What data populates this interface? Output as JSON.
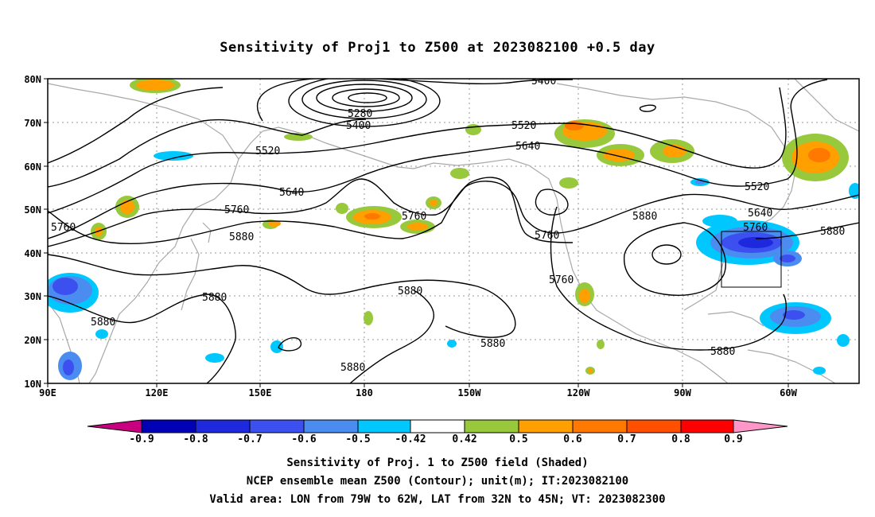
{
  "title": "Sensitivity of Proj1 to Z500 at 2023082100 +0.5 day",
  "map": {
    "lon_ticks": [
      "90E",
      "120E",
      "150E",
      "180",
      "150W",
      "120W",
      "90W",
      "60W"
    ],
    "lat_ticks": [
      "80N",
      "70N",
      "60N",
      "50N",
      "40N",
      "30N",
      "20N",
      "10N"
    ],
    "contour_labels": [
      "5400",
      "5280",
      "5400",
      "5520",
      "5520",
      "5640",
      "5640",
      "5760",
      "5760",
      "5760",
      "5880",
      "5880",
      "5880",
      "5880",
      "5880",
      "5880",
      "5520",
      "5640",
      "5760",
      "5880",
      "5760",
      "5760",
      "5880",
      "5880"
    ],
    "valid_box": {
      "lon_range": [
        "79W",
        "62W"
      ],
      "lat_range": [
        "32N",
        "45N"
      ]
    },
    "shading_colors": {
      "neg_0.9": "#c80080",
      "neg_0.8": "#0000b4",
      "neg_0.7": "#1e28dc",
      "neg_0.6": "#3c50f0",
      "neg_0.5": "#4b8cf0",
      "neg_0.42": "#00c8ff",
      "pos_0.42": "#98c83c",
      "pos_0.5": "#ffa000",
      "pos_0.6": "#ff7800",
      "pos_0.7": "#ff5000",
      "pos_0.8": "#ff0000",
      "pos_0.9": "#ff96c8"
    }
  },
  "colorbar": {
    "labels": [
      "-0.9",
      "-0.8",
      "-0.7",
      "-0.6",
      "-0.5",
      "-0.42",
      "0.42",
      "0.5",
      "0.6",
      "0.7",
      "0.8",
      "0.9"
    ],
    "colors": [
      "#c80080",
      "#0000b4",
      "#1e28dc",
      "#3c50f0",
      "#4b8cf0",
      "#00c8ff",
      "#ffffff",
      "#98c83c",
      "#ffa000",
      "#ff7800",
      "#ff5000",
      "#ff0000",
      "#ff96c8"
    ]
  },
  "captions": [
    "Sensitivity of Proj. 1 to Z500 field (Shaded)",
    "NCEP ensemble mean Z500 (Contour); unit(m); IT:2023082100",
    "Valid area: LON from 79W to 62W, LAT from 32N to 45N; VT: 2023082300"
  ]
}
